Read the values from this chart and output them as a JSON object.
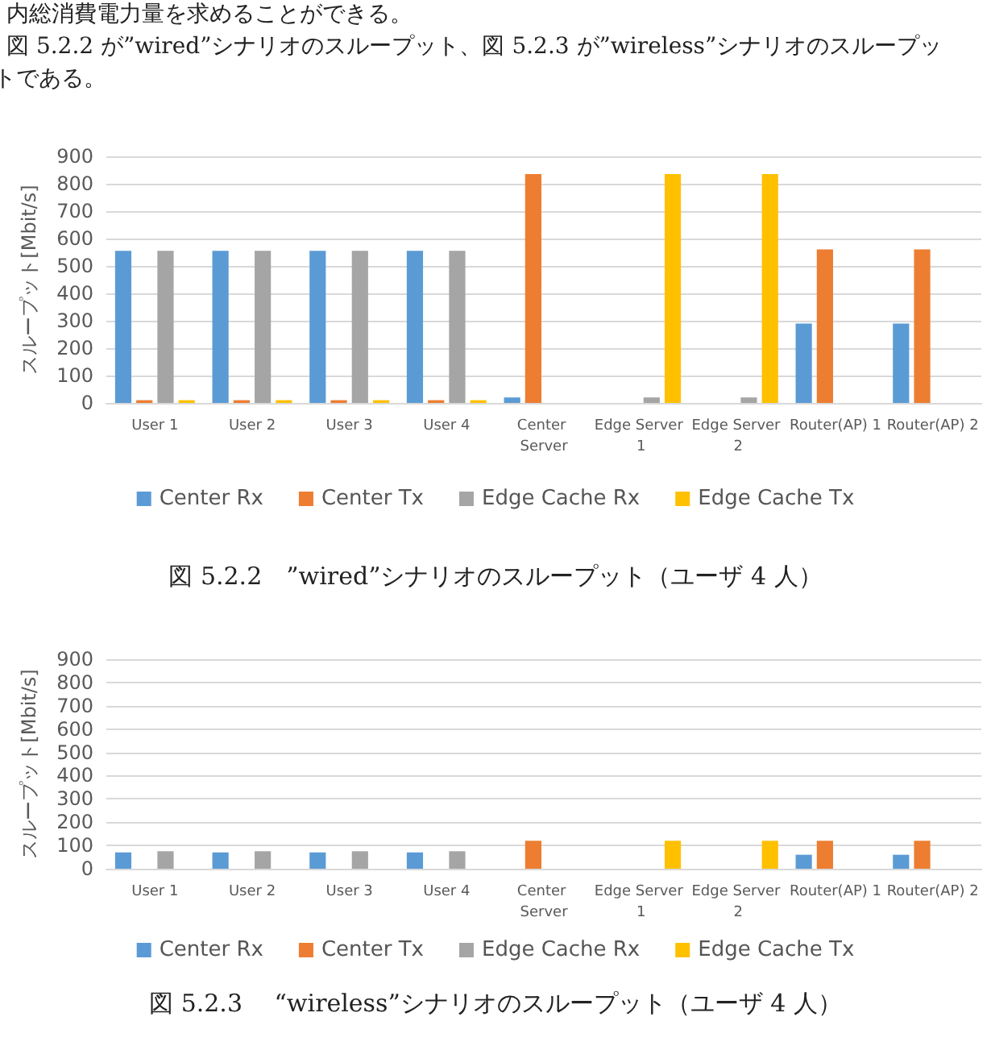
{
  "chart_data": [
    {
      "type": "bar",
      "title": "図 5.2.2　”wired”シナリオのスループット（ユーザ 4 人）",
      "ylabel": "スループット[Mbit/s]",
      "annotations": [
        "内総消費電力量を求めることができる。",
        "図 5.2.2 が”wired”シナリオのスループット、図 5.2.3 が”wireless”シナリオのスループッ",
        "トである。"
      ],
      "categories": [
        "User 1",
        "User 2",
        "User 3",
        "User 4",
        "Center Server",
        "Edge Server 1",
        "Edge Server 2",
        "Router(AP) 1",
        "Router(AP) 2"
      ],
      "series": [
        {
          "name": "Center Rx",
          "color": "#5b9bd5",
          "values": [
            555,
            555,
            555,
            555,
            20,
            null,
            null,
            290,
            290
          ]
        },
        {
          "name": "Center Tx",
          "color": "#ed7d31",
          "values": [
            10,
            10,
            10,
            10,
            835,
            null,
            null,
            560,
            560
          ]
        },
        {
          "name": "Edge Cache Rx",
          "color": "#a5a5a5",
          "values": [
            555,
            555,
            555,
            555,
            null,
            20,
            20,
            null,
            null
          ]
        },
        {
          "name": "Edge Cache Tx",
          "color": "#ffc000",
          "values": [
            10,
            10,
            10,
            10,
            null,
            835,
            835,
            null,
            null
          ]
        }
      ],
      "ylim": [
        0,
        900
      ],
      "yticks": [
        0,
        100,
        200,
        300,
        400,
        500,
        600,
        700,
        800,
        900
      ],
      "grid": "y",
      "legend": "bottom"
    },
    {
      "type": "bar",
      "title": "図 5.2.3　 “wireless”シナリオのスループット（ユーザ 4 人）",
      "ylabel": "スループット[Mbit/s]",
      "categories": [
        "User 1",
        "User 2",
        "User 3",
        "User 4",
        "Center Server",
        "Edge Server 1",
        "Edge Server 2",
        "Router(AP) 1",
        "Router(AP) 2"
      ],
      "series": [
        {
          "name": "Center Rx",
          "color": "#5b9bd5",
          "values": [
            70,
            70,
            70,
            70,
            null,
            null,
            null,
            60,
            60
          ]
        },
        {
          "name": "Center Tx",
          "color": "#ed7d31",
          "values": [
            null,
            null,
            null,
            null,
            120,
            null,
            null,
            120,
            120
          ]
        },
        {
          "name": "Edge Cache Rx",
          "color": "#a5a5a5",
          "values": [
            75,
            75,
            75,
            75,
            null,
            null,
            null,
            null,
            null
          ]
        },
        {
          "name": "Edge Cache Tx",
          "color": "#ffc000",
          "values": [
            null,
            null,
            null,
            null,
            null,
            120,
            120,
            null,
            null
          ]
        }
      ],
      "ylim": [
        0,
        900
      ],
      "yticks": [
        0,
        100,
        200,
        300,
        400,
        500,
        600,
        700,
        800,
        900
      ],
      "grid": "y",
      "legend": "bottom"
    }
  ]
}
